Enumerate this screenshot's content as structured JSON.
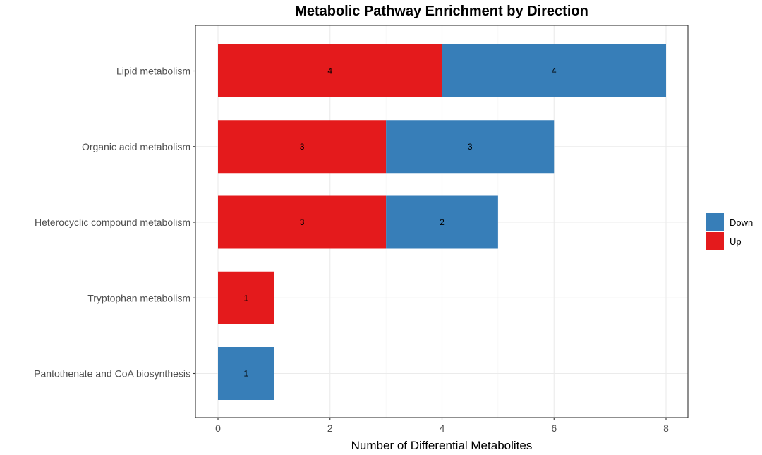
{
  "chart_data": {
    "type": "bar",
    "orientation": "horizontal",
    "stacked": true,
    "title": "Metabolic Pathway Enrichment by Direction",
    "xlabel": "Number of Differential Metabolites",
    "ylabel": "",
    "xlim": [
      0,
      8
    ],
    "xticks": [
      0,
      2,
      4,
      6,
      8
    ],
    "grid": true,
    "legend_position": "right",
    "categories": [
      "Lipid metabolism",
      "Organic acid metabolism",
      "Heterocyclic compound metabolism",
      "Tryptophan metabolism",
      "Pantothenate and CoA biosynthesis"
    ],
    "series": [
      {
        "name": "Up",
        "color": "#e41a1c",
        "values": [
          4,
          3,
          3,
          1,
          0
        ]
      },
      {
        "name": "Down",
        "color": "#377eb8",
        "values": [
          4,
          3,
          2,
          0,
          1
        ]
      }
    ],
    "legend": [
      {
        "name": "Down",
        "color": "#377eb8"
      },
      {
        "name": "Up",
        "color": "#e41a1c"
      }
    ]
  }
}
